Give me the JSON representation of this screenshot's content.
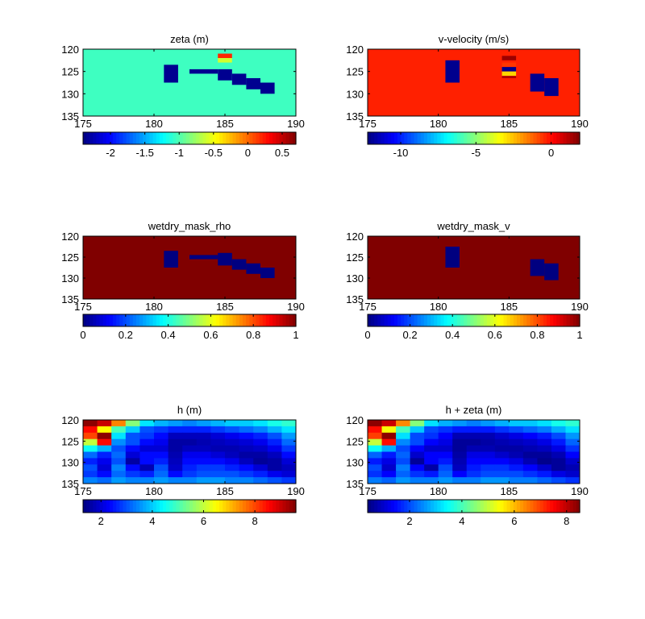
{
  "colormap": "jet",
  "chart_data": [
    {
      "type": "heatmap",
      "title": "zeta (m)",
      "xlim": [
        175,
        190
      ],
      "ylim": [
        120,
        135
      ],
      "y_reversed": true,
      "xticks": [
        "175",
        "180",
        "185",
        "190"
      ],
      "yticks": [
        "120",
        "125",
        "130",
        "135"
      ],
      "colorbar": {
        "range": [
          -2.4,
          0.7
        ],
        "ticks": [
          -2,
          -1.5,
          -1,
          -0.5,
          0,
          0.5
        ],
        "labels": [
          "-2",
          "-1.5",
          "-1",
          "-0.5",
          "0",
          "0.5"
        ]
      },
      "background_value": -1.05,
      "cells": [
        {
          "x": [
            180.7,
            181.7
          ],
          "y": [
            123.5,
            127.5
          ],
          "value": -2.35
        },
        {
          "x": [
            182.5,
            184.5
          ],
          "y": [
            124.5,
            125.5
          ],
          "value": -2.35
        },
        {
          "x": [
            184.5,
            185.5
          ],
          "y": [
            121.0,
            122.0
          ],
          "value": 0.2
        },
        {
          "x": [
            184.5,
            185.5
          ],
          "y": [
            122.0,
            123.0
          ],
          "value": -0.6
        },
        {
          "x": [
            184.5,
            185.5
          ],
          "y": [
            124.5,
            127.0
          ],
          "value": -2.35
        },
        {
          "x": [
            185.5,
            186.5
          ],
          "y": [
            125.5,
            128.0
          ],
          "value": -2.35
        },
        {
          "x": [
            186.5,
            187.5
          ],
          "y": [
            126.5,
            129.0
          ],
          "value": -2.35
        },
        {
          "x": [
            187.5,
            188.5
          ],
          "y": [
            127.5,
            130.0
          ],
          "value": -2.35
        }
      ]
    },
    {
      "type": "heatmap",
      "title": "v-velocity (m/s)",
      "xlim": [
        175,
        190
      ],
      "ylim": [
        120,
        135
      ],
      "y_reversed": true,
      "xticks": [
        "175",
        "180",
        "185",
        "190"
      ],
      "yticks": [
        "120",
        "125",
        "130",
        "135"
      ],
      "colorbar": {
        "range": [
          -12.2,
          1.9
        ],
        "ticks": [
          -10,
          -5,
          0
        ],
        "labels": [
          "-10",
          "-5",
          "0"
        ]
      },
      "background_value": -0.3,
      "cells": [
        {
          "x": [
            180.5,
            181.5
          ],
          "y": [
            122.5,
            127.5
          ],
          "value": -12.0
        },
        {
          "x": [
            184.5,
            185.5
          ],
          "y": [
            121.5,
            122.5
          ],
          "value": 1.5
        },
        {
          "x": [
            184.5,
            185.5
          ],
          "y": [
            123.0,
            124.0
          ],
          "value": -0.6
        },
        {
          "x": [
            184.5,
            185.5
          ],
          "y": [
            124.0,
            125.0
          ],
          "value": -12.0
        },
        {
          "x": [
            184.5,
            185.5
          ],
          "y": [
            125.0,
            126.0
          ],
          "value": -2.8
        },
        {
          "x": [
            184.5,
            185.5
          ],
          "y": [
            126.0,
            126.5
          ],
          "value": 1.2
        },
        {
          "x": [
            186.5,
            187.5
          ],
          "y": [
            125.5,
            129.5
          ],
          "value": -12.0
        },
        {
          "x": [
            187.5,
            188.5
          ],
          "y": [
            126.5,
            130.5
          ],
          "value": -12.0
        }
      ]
    },
    {
      "type": "heatmap",
      "title": "wetdry_mask_rho",
      "xlim": [
        175,
        190
      ],
      "ylim": [
        120,
        135
      ],
      "y_reversed": true,
      "xticks": [
        "175",
        "180",
        "185",
        "190"
      ],
      "yticks": [
        "120",
        "125",
        "130",
        "135"
      ],
      "colorbar": {
        "range": [
          0,
          1
        ],
        "ticks": [
          0,
          0.2,
          0.4,
          0.6,
          0.8,
          1
        ],
        "labels": [
          "0",
          "0.2",
          "0.4",
          "0.6",
          "0.8",
          "1"
        ]
      },
      "background_value": 1,
      "cells": [
        {
          "x": [
            180.7,
            181.7
          ],
          "y": [
            123.5,
            127.5
          ],
          "value": 0
        },
        {
          "x": [
            182.5,
            184.5
          ],
          "y": [
            124.5,
            125.5
          ],
          "value": 0
        },
        {
          "x": [
            184.5,
            185.5
          ],
          "y": [
            124.0,
            127.0
          ],
          "value": 0
        },
        {
          "x": [
            185.5,
            186.5
          ],
          "y": [
            125.5,
            128.0
          ],
          "value": 0
        },
        {
          "x": [
            186.5,
            187.5
          ],
          "y": [
            126.5,
            129.0
          ],
          "value": 0
        },
        {
          "x": [
            187.5,
            188.5
          ],
          "y": [
            127.5,
            130.0
          ],
          "value": 0
        }
      ]
    },
    {
      "type": "heatmap",
      "title": "wetdry_mask_v",
      "xlim": [
        175,
        190
      ],
      "ylim": [
        120,
        135
      ],
      "y_reversed": true,
      "xticks": [
        "175",
        "180",
        "185",
        "190"
      ],
      "yticks": [
        "120",
        "125",
        "130",
        "135"
      ],
      "colorbar": {
        "range": [
          0,
          1
        ],
        "ticks": [
          0,
          0.2,
          0.4,
          0.6,
          0.8,
          1
        ],
        "labels": [
          "0",
          "0.2",
          "0.4",
          "0.6",
          "0.8",
          "1"
        ]
      },
      "background_value": 1,
      "cells": [
        {
          "x": [
            180.5,
            181.5
          ],
          "y": [
            122.5,
            127.5
          ],
          "value": 0
        },
        {
          "x": [
            186.5,
            187.5
          ],
          "y": [
            125.5,
            129.5
          ],
          "value": 0
        },
        {
          "x": [
            187.5,
            188.5
          ],
          "y": [
            126.5,
            130.5
          ],
          "value": 0
        }
      ]
    },
    {
      "type": "heatmap",
      "title": "h (m)",
      "xlim": [
        175,
        190
      ],
      "ylim": [
        120,
        135
      ],
      "y_reversed": true,
      "xticks": [
        "175",
        "180",
        "185",
        "190"
      ],
      "yticks": [
        "120",
        "125",
        "130",
        "135"
      ],
      "colorbar": {
        "range": [
          1.3,
          9.6
        ],
        "ticks": [
          2,
          4,
          6,
          8
        ],
        "labels": [
          "2",
          "4",
          "6",
          "8"
        ]
      },
      "grid": {
        "x0": 175,
        "dx": 1,
        "y0": 120,
        "dy": 1.5,
        "rows": [
          [
            9.5,
            9.0,
            7.5,
            5.5,
            4.2,
            3.8,
            3.6,
            3.4,
            3.6,
            3.8,
            4.0,
            4.0,
            4.2,
            4.6,
            4.8
          ],
          [
            8.5,
            6.5,
            5.0,
            4.0,
            3.0,
            2.8,
            2.6,
            2.6,
            2.6,
            2.8,
            3.0,
            3.2,
            3.4,
            3.8,
            4.2
          ],
          [
            8.0,
            9.5,
            4.2,
            3.0,
            2.8,
            2.4,
            1.8,
            1.8,
            1.8,
            2.0,
            2.2,
            2.4,
            2.6,
            3.0,
            3.6
          ],
          [
            6.0,
            8.5,
            3.5,
            3.0,
            2.4,
            2.2,
            1.6,
            1.6,
            1.7,
            1.8,
            1.9,
            2.0,
            2.2,
            2.6,
            3.2
          ],
          [
            4.5,
            3.8,
            3.0,
            2.4,
            2.0,
            2.0,
            1.6,
            1.8,
            1.8,
            1.7,
            1.7,
            1.8,
            1.9,
            2.2,
            2.8
          ],
          [
            3.2,
            2.6,
            3.2,
            2.0,
            2.4,
            2.4,
            1.7,
            2.2,
            2.2,
            2.0,
            1.8,
            1.6,
            1.6,
            1.8,
            2.4
          ],
          [
            2.6,
            2.2,
            3.0,
            1.6,
            2.4,
            2.6,
            1.8,
            2.4,
            2.4,
            2.4,
            2.2,
            1.8,
            1.5,
            1.6,
            2.0
          ],
          [
            3.0,
            2.0,
            3.4,
            2.4,
            1.7,
            3.0,
            1.9,
            2.6,
            2.8,
            2.8,
            2.6,
            2.4,
            2.0,
            1.6,
            1.8
          ],
          [
            2.8,
            2.4,
            3.2,
            2.8,
            2.6,
            3.2,
            2.4,
            2.8,
            3.0,
            3.0,
            3.0,
            2.8,
            2.6,
            2.2,
            2.0
          ],
          [
            3.4,
            3.2,
            3.6,
            3.4,
            3.4,
            3.6,
            3.4,
            3.4,
            3.6,
            3.6,
            3.4,
            3.4,
            3.2,
            3.0,
            2.8
          ]
        ]
      }
    },
    {
      "type": "heatmap",
      "title": "h + zeta (m)",
      "xlim": [
        175,
        190
      ],
      "ylim": [
        120,
        135
      ],
      "y_reversed": true,
      "xticks": [
        "175",
        "180",
        "185",
        "190"
      ],
      "yticks": [
        "120",
        "125",
        "130",
        "135"
      ],
      "colorbar": {
        "range": [
          0.4,
          8.5
        ],
        "ticks": [
          2,
          4,
          6,
          8
        ],
        "labels": [
          "2",
          "4",
          "6",
          "8"
        ]
      },
      "grid": {
        "x0": 175,
        "dx": 1,
        "y0": 120,
        "dy": 1.5,
        "rows": [
          [
            8.4,
            7.9,
            6.4,
            4.5,
            3.2,
            2.8,
            2.6,
            2.4,
            2.6,
            2.8,
            3.0,
            3.0,
            3.2,
            3.6,
            3.8
          ],
          [
            7.4,
            5.4,
            4.0,
            3.0,
            2.0,
            1.8,
            1.6,
            1.6,
            1.6,
            1.8,
            2.0,
            2.2,
            2.4,
            2.8,
            3.2
          ],
          [
            7.0,
            8.4,
            3.2,
            2.0,
            1.8,
            1.4,
            0.8,
            0.8,
            0.8,
            1.0,
            1.2,
            1.4,
            1.6,
            2.0,
            2.6
          ],
          [
            5.0,
            7.4,
            2.5,
            2.0,
            1.4,
            1.2,
            0.6,
            0.6,
            0.7,
            0.8,
            0.9,
            1.0,
            1.2,
            1.6,
            2.2
          ],
          [
            3.5,
            2.8,
            2.0,
            1.4,
            1.0,
            1.0,
            0.6,
            0.8,
            0.8,
            0.7,
            0.7,
            0.8,
            0.9,
            1.2,
            1.8
          ],
          [
            2.2,
            1.6,
            2.2,
            1.0,
            1.4,
            1.4,
            0.7,
            1.2,
            1.2,
            1.0,
            0.8,
            0.6,
            0.6,
            0.8,
            1.4
          ],
          [
            1.6,
            1.2,
            2.0,
            0.6,
            1.4,
            1.6,
            0.8,
            1.4,
            1.4,
            1.4,
            1.2,
            0.8,
            0.5,
            0.6,
            1.0
          ],
          [
            2.0,
            1.0,
            2.4,
            1.4,
            0.7,
            2.0,
            0.9,
            1.6,
            1.8,
            1.8,
            1.6,
            1.4,
            1.0,
            0.6,
            0.8
          ],
          [
            1.8,
            1.4,
            2.2,
            1.8,
            1.6,
            2.2,
            1.4,
            1.8,
            2.0,
            2.0,
            2.0,
            1.8,
            1.6,
            1.2,
            1.0
          ],
          [
            2.4,
            2.2,
            2.6,
            2.4,
            2.4,
            2.6,
            2.4,
            2.4,
            2.6,
            2.6,
            2.4,
            2.4,
            2.2,
            2.0,
            1.8
          ]
        ]
      }
    }
  ]
}
